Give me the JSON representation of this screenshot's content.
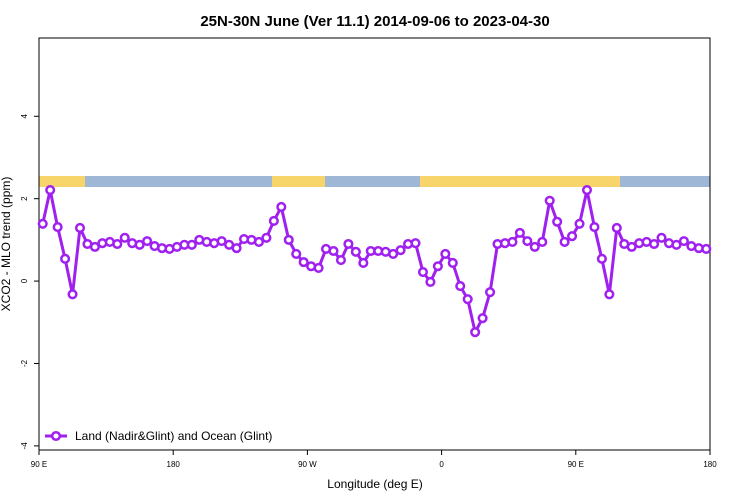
{
  "chart_data": {
    "type": "line",
    "title": "25N-30N June (Ver 11.1)   2014-09-06 to 2023-04-30",
    "x_label": "Longitude (deg E)",
    "y_label": "XCO2 - MLO trend (ppm)",
    "x": [
      92.5,
      97.5,
      102.5,
      107.5,
      112.5,
      117.5,
      122.5,
      127.5,
      132.5,
      137.5,
      142.5,
      147.5,
      152.5,
      157.5,
      162.5,
      167.5,
      172.5,
      177.5,
      182.5,
      187.5,
      192.5,
      197.5,
      202.5,
      207.5,
      212.5,
      217.5,
      222.5,
      227.5,
      232.5,
      237.5,
      242.5,
      247.5,
      252.5,
      257.5,
      262.5,
      267.5,
      272.5,
      277.5,
      282.5,
      287.5,
      292.5,
      297.5,
      302.5,
      307.5,
      312.5,
      317.5,
      322.5,
      327.5,
      332.5,
      337.5,
      342.5,
      347.5,
      352.5,
      357.5,
      362.5,
      367.5,
      372.5,
      377.5,
      382.5,
      387.5,
      392.5,
      397.5,
      402.5,
      407.5,
      412.5,
      417.5,
      422.5,
      427.5,
      432.5,
      437.5,
      442.5,
      447.5,
      452.5,
      457.5,
      462.5,
      467.5,
      472.5,
      477.5,
      482.5,
      487.5,
      492.5,
      497.5,
      502.5,
      507.5,
      512.5,
      517.5,
      522.5,
      527.5,
      532.5,
      537.5
    ],
    "series": [
      {
        "name": "Land (Nadir&Glint) and Ocean (Glint)",
        "color": "#a020f0",
        "values": [
          1.39,
          2.21,
          1.31,
          0.54,
          -0.32,
          1.29,
          0.9,
          0.83,
          0.92,
          0.95,
          0.9,
          1.05,
          0.92,
          0.88,
          0.97,
          0.85,
          0.8,
          0.78,
          0.83,
          0.88,
          0.88,
          1.0,
          0.95,
          0.92,
          0.97,
          0.88,
          0.8,
          1.02,
          1.0,
          0.95,
          1.05,
          1.46,
          1.8,
          1.0,
          0.66,
          0.46,
          0.36,
          0.32,
          0.78,
          0.73,
          0.51,
          0.9,
          0.71,
          0.44,
          0.73,
          0.73,
          0.71,
          0.66,
          0.75,
          0.9,
          0.92,
          0.22,
          -0.02,
          0.36,
          0.66,
          0.44,
          -0.12,
          -0.44,
          -1.24,
          -0.9,
          -0.27,
          0.9,
          0.92,
          0.95,
          1.17,
          0.97,
          0.83,
          0.95,
          1.95,
          1.44,
          0.95,
          1.09,
          1.39,
          2.21,
          1.31,
          0.54,
          -0.32,
          1.29,
          0.9,
          0.83,
          0.92,
          0.95,
          0.9,
          1.05,
          0.92,
          0.88,
          0.97,
          0.85,
          0.8,
          0.78
        ]
      }
    ],
    "xlim": [
      90,
      540
    ],
    "xticks": [
      {
        "value": 90,
        "label": "90 E"
      },
      {
        "value": 180,
        "label": "180"
      },
      {
        "value": 270,
        "label": "90 W"
      },
      {
        "value": 360,
        "label": "0"
      },
      {
        "value": 450,
        "label": "90 E"
      },
      {
        "value": 540,
        "label": "180"
      }
    ],
    "ylim": [
      -4.1,
      5.9
    ],
    "yticks": [
      -4,
      -2,
      0,
      2,
      4
    ],
    "legend": "bottom-left"
  }
}
